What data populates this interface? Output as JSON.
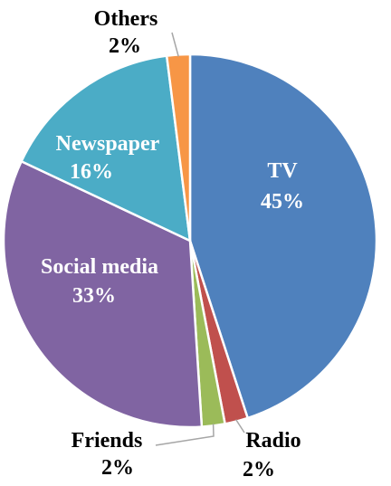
{
  "chart_data": {
    "type": "pie",
    "title": "",
    "slices": [
      {
        "label": "TV",
        "value": 45,
        "display": "45%",
        "color": "#4f81bd"
      },
      {
        "label": "Radio",
        "value": 2,
        "display": "2%",
        "color": "#c0504d"
      },
      {
        "label": "Friends",
        "value": 2,
        "display": "2%",
        "color": "#9bbb59"
      },
      {
        "label": "Social media",
        "value": 33,
        "display": "33%",
        "color": "#8064a2"
      },
      {
        "label": "Newspaper",
        "value": 16,
        "display": "16%",
        "color": "#4bacc6"
      },
      {
        "label": "Others",
        "value": 2,
        "display": "2%",
        "color": "#f79646"
      }
    ],
    "label_style": {
      "inside_text_color": "#ffffff",
      "outside_text_color": "#000000",
      "leader_line_color": "#a6a6a6"
    }
  }
}
